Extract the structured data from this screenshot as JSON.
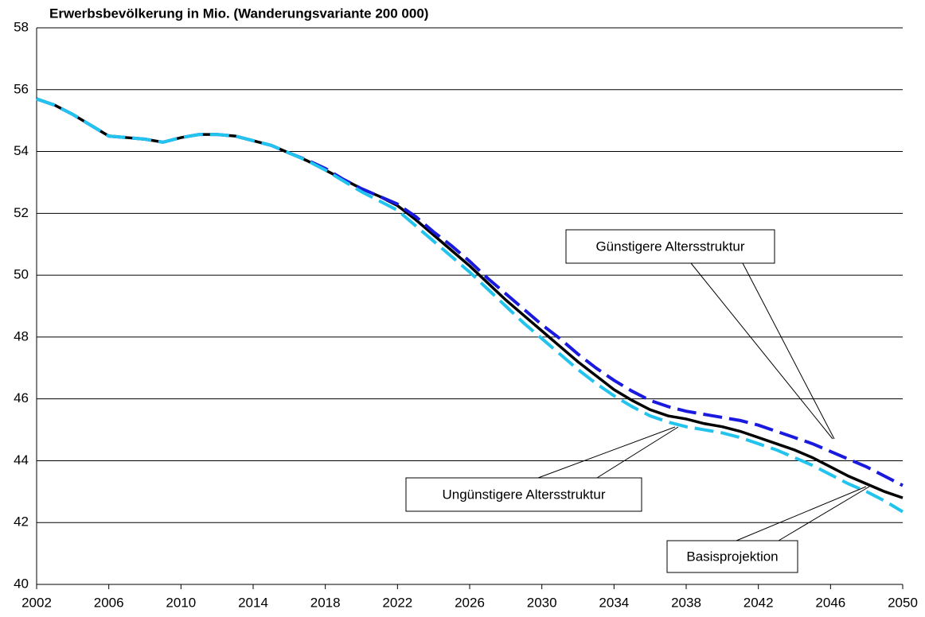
{
  "chart_data": {
    "type": "line",
    "title": "Erwerbsbevölkerung in Mio. (Wanderungsvariante 200 000)",
    "x": [
      2002,
      2003,
      2004,
      2005,
      2006,
      2007,
      2008,
      2009,
      2010,
      2011,
      2012,
      2013,
      2014,
      2015,
      2016,
      2017,
      2018,
      2019,
      2020,
      2021,
      2022,
      2023,
      2024,
      2025,
      2026,
      2027,
      2028,
      2029,
      2030,
      2031,
      2032,
      2033,
      2034,
      2035,
      2036,
      2037,
      2038,
      2039,
      2040,
      2041,
      2042,
      2043,
      2044,
      2045,
      2046,
      2047,
      2048,
      2049,
      2050
    ],
    "series": [
      {
        "name": "Basisprojektion",
        "color": "#000000",
        "dash": "solid",
        "values": [
          55.7,
          55.5,
          55.2,
          54.85,
          54.5,
          54.45,
          54.4,
          54.3,
          54.45,
          54.55,
          54.55,
          54.5,
          54.35,
          54.2,
          53.95,
          53.7,
          53.4,
          53.1,
          52.8,
          52.55,
          52.25,
          51.8,
          51.3,
          50.8,
          50.3,
          49.75,
          49.2,
          48.7,
          48.2,
          47.7,
          47.2,
          46.75,
          46.3,
          45.95,
          45.65,
          45.45,
          45.35,
          45.2,
          45.1,
          44.95,
          44.75,
          44.55,
          44.35,
          44.1,
          43.8,
          43.5,
          43.25,
          43.0,
          42.8
        ]
      },
      {
        "name": "Günstigere Altersstruktur",
        "color": "#1a1adf",
        "dash": "dashed",
        "values": [
          55.7,
          55.5,
          55.2,
          54.85,
          54.5,
          54.45,
          54.4,
          54.3,
          54.45,
          54.55,
          54.55,
          54.5,
          54.35,
          54.2,
          53.95,
          53.72,
          53.45,
          53.1,
          52.8,
          52.55,
          52.3,
          51.9,
          51.4,
          50.95,
          50.45,
          49.9,
          49.4,
          48.9,
          48.4,
          47.95,
          47.45,
          47.0,
          46.6,
          46.25,
          45.95,
          45.75,
          45.6,
          45.5,
          45.4,
          45.3,
          45.15,
          44.95,
          44.75,
          44.55,
          44.3,
          44.05,
          43.8,
          43.5,
          43.2
        ]
      },
      {
        "name": "Ungünstigere Altersstruktur",
        "color": "#22c4ee",
        "dash": "dashed",
        "values": [
          55.7,
          55.5,
          55.2,
          54.85,
          54.5,
          54.45,
          54.4,
          54.3,
          54.45,
          54.55,
          54.55,
          54.5,
          54.35,
          54.2,
          53.95,
          53.7,
          53.4,
          53.05,
          52.7,
          52.4,
          52.1,
          51.6,
          51.1,
          50.6,
          50.1,
          49.55,
          49.0,
          48.45,
          47.95,
          47.45,
          46.95,
          46.5,
          46.1,
          45.75,
          45.45,
          45.25,
          45.1,
          45.0,
          44.9,
          44.75,
          44.55,
          44.35,
          44.1,
          43.85,
          43.55,
          43.25,
          43.0,
          42.7,
          42.35
        ]
      }
    ],
    "xlim": [
      2002,
      2050
    ],
    "xticks": [
      2002,
      2006,
      2010,
      2014,
      2018,
      2022,
      2026,
      2030,
      2034,
      2038,
      2042,
      2046,
      2050
    ],
    "ylim": [
      40,
      58
    ],
    "yticks": [
      40,
      42,
      44,
      46,
      48,
      50,
      52,
      54,
      56,
      58
    ],
    "grid": true
  }
}
